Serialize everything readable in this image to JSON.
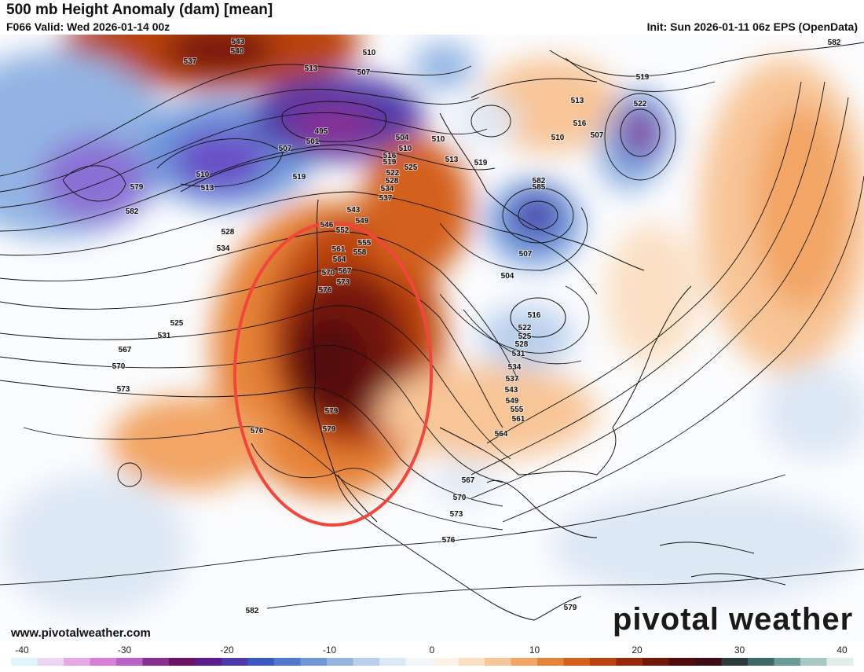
{
  "header": {
    "title": "500 mb Height Anomaly (dam) [mean]",
    "valid": "F066 Valid: Wed 2026-01-14 00z",
    "init": "Init: Sun 2026-01-11 06z EPS (OpenData)"
  },
  "footer": {
    "website": "www.pivotalweather.com",
    "logo": "pivotal weather"
  },
  "colorbar": {
    "labels": [
      "-40",
      "-30",
      "-20",
      "-10",
      "0",
      "10",
      "20",
      "30",
      "40"
    ],
    "colors": [
      "#e0f4fb",
      "#ecd6f4",
      "#e7a8e8",
      "#d97ed9",
      "#b861c8",
      "#8a2f92",
      "#6d1166",
      "#5b1a8f",
      "#4c3aa8",
      "#3b59c0",
      "#4d79cf",
      "#6e98da",
      "#93b4e3",
      "#b9cfec",
      "#dde8f5",
      "#f3f6fa",
      "#fbf2e8",
      "#fbe0c4",
      "#f8c597",
      "#f2a565",
      "#e68338",
      "#d3601c",
      "#b9420f",
      "#97280a",
      "#741607",
      "#520b0a",
      "#3f0b15",
      "#2c3c3c",
      "#3d6a66",
      "#6a9c95",
      "#a8c9c3",
      "#e2ecea"
    ]
  },
  "map": {
    "contour_labels": [
      "543",
      "540",
      "537",
      "513",
      "510",
      "507",
      "495",
      "501",
      "507",
      "510",
      "513",
      "519",
      "504",
      "510",
      "516",
      "519",
      "522",
      "528",
      "525",
      "534",
      "537",
      "543",
      "549",
      "546",
      "552",
      "555",
      "558",
      "561",
      "564",
      "567",
      "570",
      "573",
      "576",
      "579",
      "582",
      "528",
      "534",
      "525",
      "531",
      "567",
      "570",
      "573",
      "576",
      "579",
      "579",
      "585",
      "582",
      "507",
      "504",
      "510",
      "513",
      "516",
      "519",
      "522",
      "507",
      "510",
      "513",
      "519",
      "516",
      "522",
      "525",
      "528",
      "531",
      "534",
      "537",
      "543",
      "549",
      "555",
      "561",
      "564",
      "567",
      "570",
      "573",
      "576",
      "579",
      "582",
      "582",
      "585",
      "567"
    ],
    "annotation": "red ellipse highlighting ridge over western North America"
  }
}
